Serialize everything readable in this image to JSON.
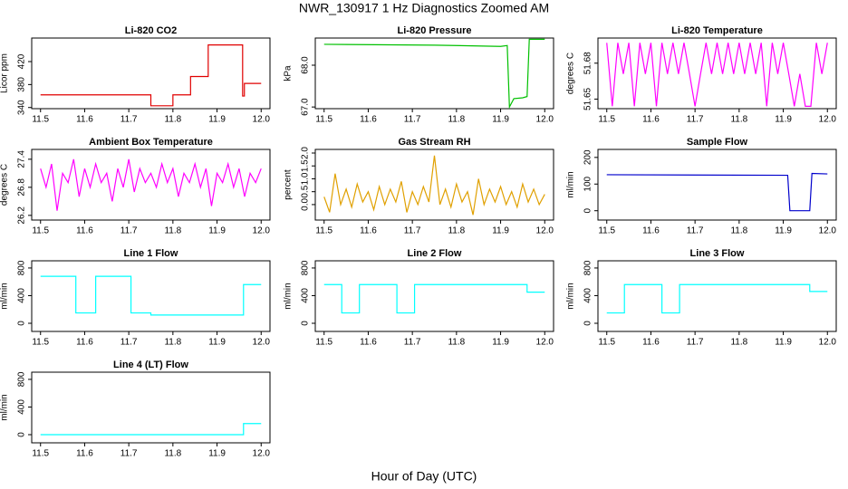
{
  "title": "NWR_130917  1 Hz Diagnostics Zoomed AM",
  "xlabel": "Hour of Day (UTC)",
  "chart_data": [
    {
      "type": "line",
      "title": "Li-820 CO2",
      "ylabel": "Licor ppm",
      "color": "#e00000",
      "x": [
        11.5,
        11.75,
        11.75,
        11.8,
        11.8,
        11.84,
        11.84,
        11.88,
        11.88,
        11.958,
        11.958,
        11.962,
        11.962,
        12.0
      ],
      "values": [
        362,
        362,
        343,
        343,
        362,
        362,
        394,
        394,
        449,
        449,
        360,
        360,
        382,
        382
      ],
      "xlim": [
        11.48,
        12.02
      ],
      "xticks": [
        11.5,
        11.6,
        11.7,
        11.8,
        11.9,
        {
          "value": 12,
          "label": "12.0"
        }
      ],
      "ylim": [
        338,
        461
      ],
      "yticks": [
        340,
        380,
        420
      ]
    },
    {
      "type": "line",
      "title": "Li-820 Pressure",
      "ylabel": "kPa",
      "color": "#00c000",
      "x": [
        11.5,
        11.75,
        11.9,
        11.915,
        11.92,
        11.93,
        11.95,
        11.96,
        11.965,
        12.0
      ],
      "values": [
        68.5,
        68.48,
        68.45,
        68.47,
        67.0,
        67.2,
        67.22,
        67.25,
        68.62,
        68.62
      ],
      "xlim": [
        11.48,
        12.02
      ],
      "xticks": [
        11.5,
        11.6,
        11.7,
        11.8,
        11.9,
        {
          "value": 12,
          "label": "12.0"
        }
      ],
      "ylim": [
        66.96,
        68.65
      ],
      "yticks": [
        {
          "value": 67,
          "label": "67.0"
        },
        {
          "value": 68,
          "label": "68.0"
        }
      ]
    },
    {
      "type": "line",
      "title": "Li-820 Temperature",
      "ylabel": "degrees C",
      "color": "#ff00ff",
      "x": [
        11.5,
        11.5125,
        11.525,
        11.5375,
        11.55,
        11.5625,
        11.575,
        11.5875,
        11.6,
        11.6125,
        11.625,
        11.6375,
        11.65,
        11.6625,
        11.675,
        11.6875,
        11.7,
        11.7125,
        11.725,
        11.7375,
        11.75,
        11.7625,
        11.775,
        11.7875,
        11.8,
        11.8125,
        11.825,
        11.8375,
        11.85,
        11.8625,
        11.875,
        11.8875,
        11.9,
        11.9125,
        11.925,
        11.9375,
        11.95,
        11.9625,
        11.975,
        11.9875,
        12.0
      ],
      "values": [
        51.697,
        51.644,
        51.697,
        51.671,
        51.697,
        51.644,
        51.697,
        51.671,
        51.697,
        51.644,
        51.697,
        51.671,
        51.697,
        51.671,
        51.697,
        51.671,
        51.644,
        51.671,
        51.697,
        51.671,
        51.697,
        51.671,
        51.697,
        51.671,
        51.697,
        51.671,
        51.697,
        51.671,
        51.697,
        51.644,
        51.697,
        51.671,
        51.697,
        51.671,
        51.644,
        51.671,
        51.644,
        51.644,
        51.697,
        51.671,
        51.697
      ],
      "xlim": [
        11.48,
        12.02
      ],
      "xticks": [
        11.5,
        11.6,
        11.7,
        11.8,
        11.9,
        {
          "value": 12,
          "label": "12.0"
        }
      ],
      "ylim": [
        51.642,
        51.701
      ],
      "yticks": [
        51.65,
        51.68
      ]
    },
    {
      "type": "line",
      "title": "Ambient Box Temperature",
      "ylabel": "degrees C",
      "color": "#ff00ff",
      "x": [
        11.5,
        11.5125,
        11.525,
        11.5375,
        11.55,
        11.5625,
        11.575,
        11.5875,
        11.6,
        11.6125,
        11.625,
        11.6375,
        11.65,
        11.6625,
        11.675,
        11.6875,
        11.7,
        11.7125,
        11.725,
        11.7375,
        11.75,
        11.7625,
        11.775,
        11.7875,
        11.8,
        11.8125,
        11.825,
        11.8375,
        11.85,
        11.8625,
        11.875,
        11.8875,
        11.9,
        11.9125,
        11.925,
        11.9375,
        11.95,
        11.9625,
        11.975,
        11.9875,
        12.0
      ],
      "values": [
        27.2,
        26.8,
        27.3,
        26.3,
        27.1,
        26.9,
        27.4,
        26.6,
        27.2,
        26.8,
        27.3,
        26.9,
        27.1,
        26.5,
        27.2,
        26.8,
        27.4,
        26.7,
        27.2,
        26.9,
        27.1,
        26.8,
        27.3,
        26.9,
        27.2,
        26.6,
        27.1,
        26.9,
        27.3,
        26.8,
        27.2,
        26.4,
        27.1,
        26.9,
        27.3,
        26.8,
        27.2,
        26.6,
        27.1,
        26.9,
        27.2
      ],
      "xlim": [
        11.48,
        12.02
      ],
      "xticks": [
        11.5,
        11.6,
        11.7,
        11.8,
        11.9,
        {
          "value": 12,
          "label": "12.0"
        }
      ],
      "ylim": [
        26.1,
        27.61
      ],
      "yticks": [
        26.2,
        26.8,
        27.4
      ]
    },
    {
      "type": "line",
      "title": "Gas Stream RH",
      "ylabel": "percent",
      "color": "#e0a000",
      "x": [
        11.5,
        11.5125,
        11.525,
        11.5375,
        11.55,
        11.5625,
        11.575,
        11.5875,
        11.6,
        11.6125,
        11.625,
        11.6375,
        11.65,
        11.6625,
        11.675,
        11.6875,
        11.7,
        11.7125,
        11.725,
        11.7375,
        11.75,
        11.7625,
        11.775,
        11.7875,
        11.8,
        11.8125,
        11.825,
        11.8375,
        11.85,
        11.8625,
        11.875,
        11.8875,
        11.9,
        11.9125,
        11.925,
        11.9375,
        11.95,
        11.9625,
        11.975,
        11.9875,
        12.0
      ],
      "values": [
        0.3,
        -0.3,
        1.2,
        0.0,
        0.6,
        -0.1,
        0.8,
        0.1,
        0.5,
        -0.2,
        0.7,
        0.0,
        0.6,
        0.1,
        0.9,
        -0.3,
        0.5,
        0.0,
        0.7,
        0.1,
        1.9,
        0.0,
        0.6,
        -0.1,
        0.8,
        0.1,
        0.5,
        -0.4,
        1.0,
        0.0,
        0.6,
        0.1,
        0.7,
        0.0,
        0.5,
        -0.1,
        0.8,
        0.1,
        0.6,
        0.0,
        0.4
      ],
      "xlim": [
        11.48,
        12.02
      ],
      "xticks": [
        11.5,
        11.6,
        11.7,
        11.8,
        11.9,
        {
          "value": 12,
          "label": "12.0"
        }
      ],
      "ylim": [
        -0.6,
        2.14
      ],
      "yticks": [
        {
          "value": 0,
          "label": "0.0"
        },
        0.5,
        {
          "value": 1,
          "label": "1.0"
        },
        1.5,
        {
          "value": 2,
          "label": "2.0"
        }
      ]
    },
    {
      "type": "line",
      "title": "Sample Flow",
      "ylabel": "ml/min",
      "color": "#0000cc",
      "x": [
        11.5,
        11.91,
        11.915,
        11.96,
        11.965,
        12.0
      ],
      "values": [
        135,
        133,
        0,
        0,
        140,
        138
      ],
      "xlim": [
        11.48,
        12.02
      ],
      "xticks": [
        11.5,
        11.6,
        11.7,
        11.8,
        11.9,
        {
          "value": 12,
          "label": "12.0"
        }
      ],
      "ylim": [
        -35,
        230
      ],
      "yticks": [
        0,
        100,
        200
      ]
    },
    {
      "type": "line",
      "title": "Line 1 Flow",
      "ylabel": "ml/min",
      "color": "#00ffff",
      "x": [
        11.5,
        11.58,
        11.58,
        11.625,
        11.625,
        11.705,
        11.705,
        11.75,
        11.75,
        11.96,
        11.96,
        12.0
      ],
      "values": [
        680,
        680,
        150,
        150,
        680,
        680,
        150,
        150,
        120,
        120,
        560,
        560
      ],
      "xlim": [
        11.48,
        12.02
      ],
      "xticks": [
        11.5,
        11.6,
        11.7,
        11.8,
        11.9,
        {
          "value": 12,
          "label": "12.0"
        }
      ],
      "ylim": [
        -118,
        904
      ],
      "yticks": [
        0,
        400,
        800
      ]
    },
    {
      "type": "line",
      "title": "Line 2 Flow",
      "ylabel": "ml/min",
      "color": "#00ffff",
      "x": [
        11.5,
        11.54,
        11.54,
        11.58,
        11.58,
        11.665,
        11.665,
        11.705,
        11.705,
        11.96,
        11.96,
        12.0
      ],
      "values": [
        560,
        560,
        150,
        150,
        560,
        560,
        150,
        150,
        560,
        560,
        450,
        450
      ],
      "xlim": [
        11.48,
        12.02
      ],
      "xticks": [
        11.5,
        11.6,
        11.7,
        11.8,
        11.9,
        {
          "value": 12,
          "label": "12.0"
        }
      ],
      "ylim": [
        -118,
        904
      ],
      "yticks": [
        0,
        400,
        800
      ]
    },
    {
      "type": "line",
      "title": "Line 3 Flow",
      "ylabel": "ml/min",
      "color": "#00ffff",
      "x": [
        11.5,
        11.54,
        11.54,
        11.625,
        11.625,
        11.665,
        11.665,
        11.96,
        11.96,
        12.0
      ],
      "values": [
        150,
        150,
        560,
        560,
        150,
        150,
        560,
        560,
        460,
        460
      ],
      "xlim": [
        11.48,
        12.02
      ],
      "xticks": [
        11.5,
        11.6,
        11.7,
        11.8,
        11.9,
        {
          "value": 12,
          "label": "12.0"
        }
      ],
      "ylim": [
        -118,
        904
      ],
      "yticks": [
        0,
        400,
        800
      ]
    },
    {
      "type": "line",
      "title": "Line 4 (LT) Flow",
      "ylabel": "ml/min",
      "color": "#00ffff",
      "x": [
        11.5,
        11.96,
        11.96,
        12.0
      ],
      "values": [
        0,
        0,
        160,
        160
      ],
      "xlim": [
        11.48,
        12.02
      ],
      "xticks": [
        11.5,
        11.6,
        11.7,
        11.8,
        11.9,
        {
          "value": 12,
          "label": "12.0"
        }
      ],
      "ylim": [
        -118,
        904
      ],
      "yticks": [
        0,
        400,
        800
      ]
    }
  ]
}
